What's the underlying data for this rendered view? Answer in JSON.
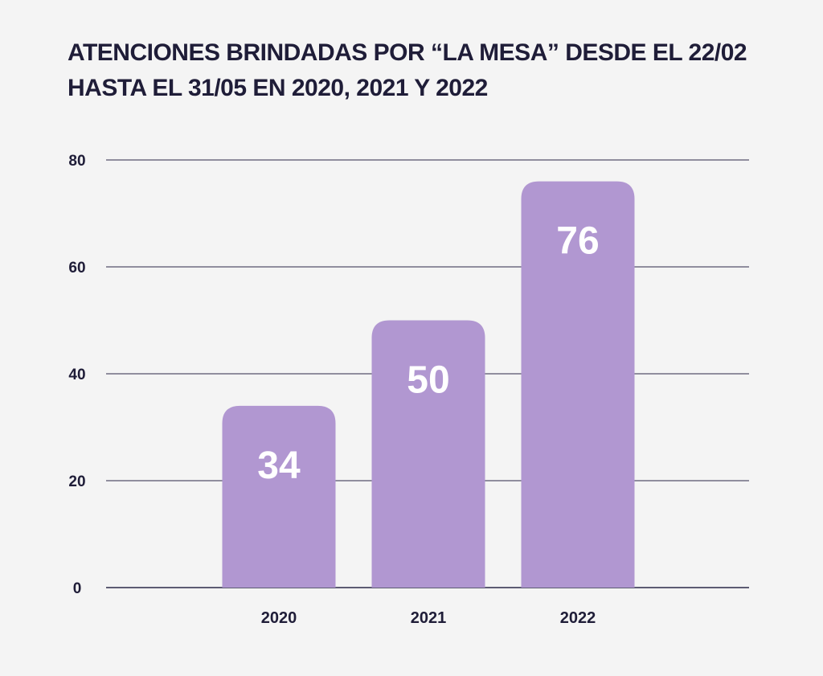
{
  "chart_data": {
    "type": "bar",
    "title": "ATENCIONES BRINDADAS POR “LA MESA” DESDE EL 22/02 HASTA EL 31/05 EN 2020, 2021 Y 2022",
    "title_lines": [
      "ATENCIONES BRINDADAS POR “LA MESA” DESDE EL 22/02",
      "HASTA EL 31/05 EN 2020, 2021 Y 2022"
    ],
    "xlabel": "",
    "ylabel": "",
    "categories": [
      "2020",
      "2021",
      "2022"
    ],
    "values": [
      34,
      50,
      76
    ],
    "data_labels": [
      "34",
      "50",
      "76"
    ],
    "ylim": [
      0,
      80
    ],
    "yticks": [
      0,
      20,
      40,
      60,
      80
    ],
    "grid": true,
    "legend": "none",
    "colors": {
      "bar": "#b197d1",
      "text": "#1f1d38",
      "grid": "#2b2948",
      "background": "#f4f4f4",
      "label": "#ffffff"
    }
  }
}
